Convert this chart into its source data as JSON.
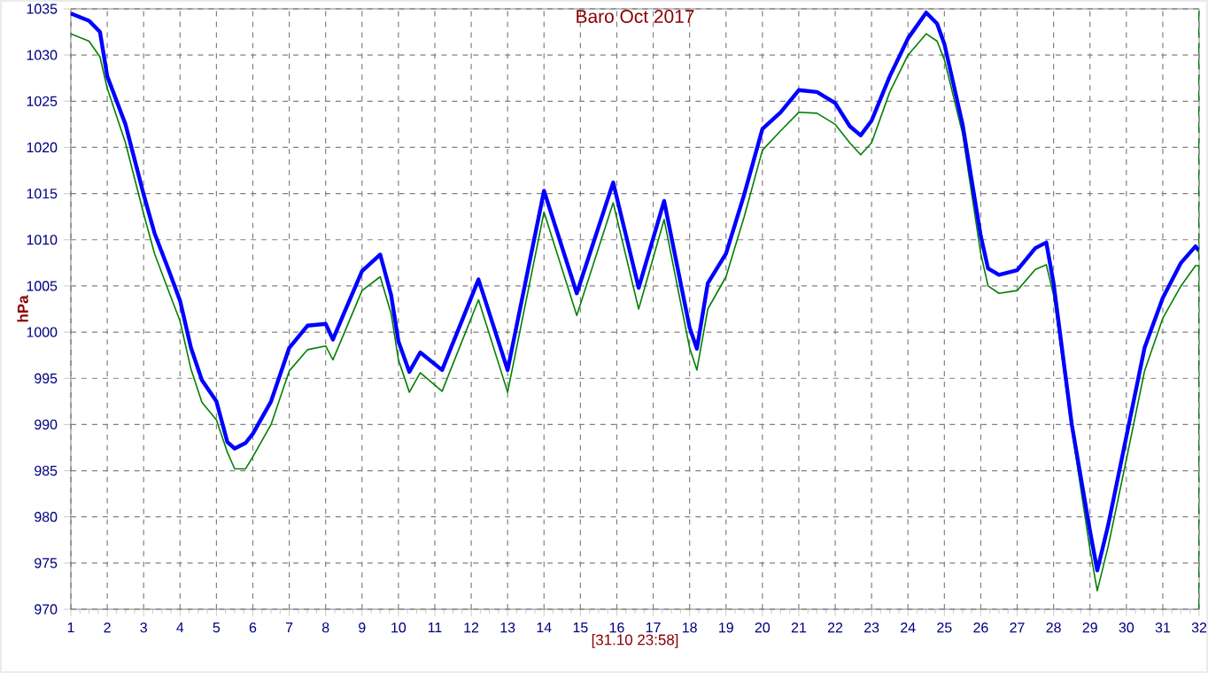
{
  "chart_data": {
    "type": "line",
    "title": "Baro Oct 2017",
    "xlabel": "[31.10 23:58]",
    "ylabel": "hPa",
    "xlim": [
      1,
      32
    ],
    "xticks": [
      1,
      2,
      3,
      4,
      5,
      6,
      7,
      8,
      9,
      10,
      11,
      12,
      13,
      14,
      15,
      16,
      17,
      18,
      19,
      20,
      21,
      22,
      23,
      24,
      25,
      26,
      27,
      28,
      29,
      30,
      31,
      32
    ],
    "ylim": [
      970,
      1035
    ],
    "yticks": [
      970,
      975,
      980,
      985,
      990,
      995,
      1000,
      1005,
      1010,
      1015,
      1020,
      1025,
      1030,
      1035
    ],
    "grid": true,
    "marker": "none",
    "line_style": "solid",
    "ref_lines": [
      {
        "axis": "x",
        "value": 32,
        "color": "#008000",
        "line_style": "dashed"
      }
    ],
    "series": [
      {
        "color": "#0000ff",
        "x": [
          1,
          1.5,
          1.8,
          2,
          2.5,
          3,
          3.3,
          3.7,
          4,
          4.3,
          4.6,
          5,
          5.3,
          5.5,
          5.8,
          6,
          6.5,
          7,
          7.5,
          8,
          8.2,
          8.5,
          9,
          9.5,
          9.8,
          10,
          10.3,
          10.6,
          11.2,
          12.2,
          13,
          14,
          14.9,
          15.9,
          16.6,
          17.3,
          18,
          18.2,
          18.5,
          19,
          19.5,
          20,
          20.5,
          21,
          21.5,
          22,
          22.4,
          22.7,
          23,
          23.5,
          24,
          24.5,
          24.8,
          25,
          25.5,
          26,
          26.2,
          26.5,
          27,
          27.5,
          27.8,
          28,
          28.5,
          29,
          29.2,
          29.5,
          30,
          30.5,
          31,
          31.5,
          31.9,
          32
        ],
        "values": [
          1034.5,
          1033.7,
          1032.5,
          1027.7,
          1022.5,
          1014.9,
          1010.7,
          1006.6,
          1003.4,
          998.3,
          994.8,
          992.5,
          988.1,
          987.4,
          988,
          989,
          992.5,
          998.3,
          1000.7,
          1000.9,
          999.2,
          1002,
          1006.6,
          1008.4,
          1004,
          999,
          995.7,
          997.8,
          995.9,
          1005.7,
          995.9,
          1015.3,
          1004.2,
          1016.2,
          1004.8,
          1014.2,
          1000.5,
          998.2,
          1005.3,
          1008.5,
          1014.9,
          1022,
          1023.8,
          1026.2,
          1026,
          1024.8,
          1022.3,
          1021.3,
          1022.9,
          1027.7,
          1031.8,
          1034.6,
          1033.4,
          1031.2,
          1022.5,
          1010.4,
          1006.9,
          1006.2,
          1006.7,
          1009.1,
          1009.7,
          1005.3,
          990,
          978.5,
          974.2,
          979.1,
          988.7,
          998.3,
          1003.7,
          1007.5,
          1009.3,
          1008.8
        ]
      },
      {
        "color": "#008000",
        "x": [
          1,
          1.5,
          1.8,
          2,
          2.5,
          3,
          3.3,
          3.7,
          4,
          4.3,
          4.6,
          5,
          5.3,
          5.5,
          5.8,
          6,
          6.5,
          7,
          7.5,
          8,
          8.2,
          8.5,
          9,
          9.5,
          9.8,
          10,
          10.3,
          10.6,
          11.2,
          12.2,
          13,
          14,
          14.9,
          15.9,
          16.6,
          17.3,
          18,
          18.2,
          18.5,
          19,
          19.5,
          20,
          20.5,
          21,
          21.5,
          22,
          22.4,
          22.7,
          23,
          23.5,
          24,
          24.5,
          24.8,
          25,
          25.5,
          26,
          26.2,
          26.5,
          27,
          27.5,
          27.8,
          28,
          28.5,
          29,
          29.2,
          29.5,
          30,
          30.5,
          31,
          31.5,
          31.9,
          32
        ],
        "values": [
          1032.3,
          1031.5,
          1029.8,
          1026.4,
          1020.5,
          1012.8,
          1008.5,
          1004.3,
          1001.2,
          996,
          992.4,
          990.5,
          987,
          985.2,
          985.2,
          986.5,
          990,
          995.8,
          998.1,
          998.5,
          997,
          999.8,
          1004.5,
          1006,
          1002,
          997,
          993.5,
          995.6,
          993.6,
          1003.5,
          993.5,
          1013,
          1001.8,
          1014,
          1002.5,
          1012.2,
          998.3,
          995.9,
          1002.5,
          1006,
          1012.5,
          1019.7,
          1021.8,
          1023.8,
          1023.7,
          1022.5,
          1020.5,
          1019.2,
          1020.5,
          1026,
          1030,
          1032.3,
          1031.5,
          1029.5,
          1021.5,
          1008.5,
          1005,
          1004.2,
          1004.5,
          1006.8,
          1007.3,
          1004,
          989.5,
          976.5,
          972,
          976.8,
          986.2,
          995.8,
          1001.5,
          1005,
          1007.2,
          1007.2
        ]
      }
    ]
  }
}
